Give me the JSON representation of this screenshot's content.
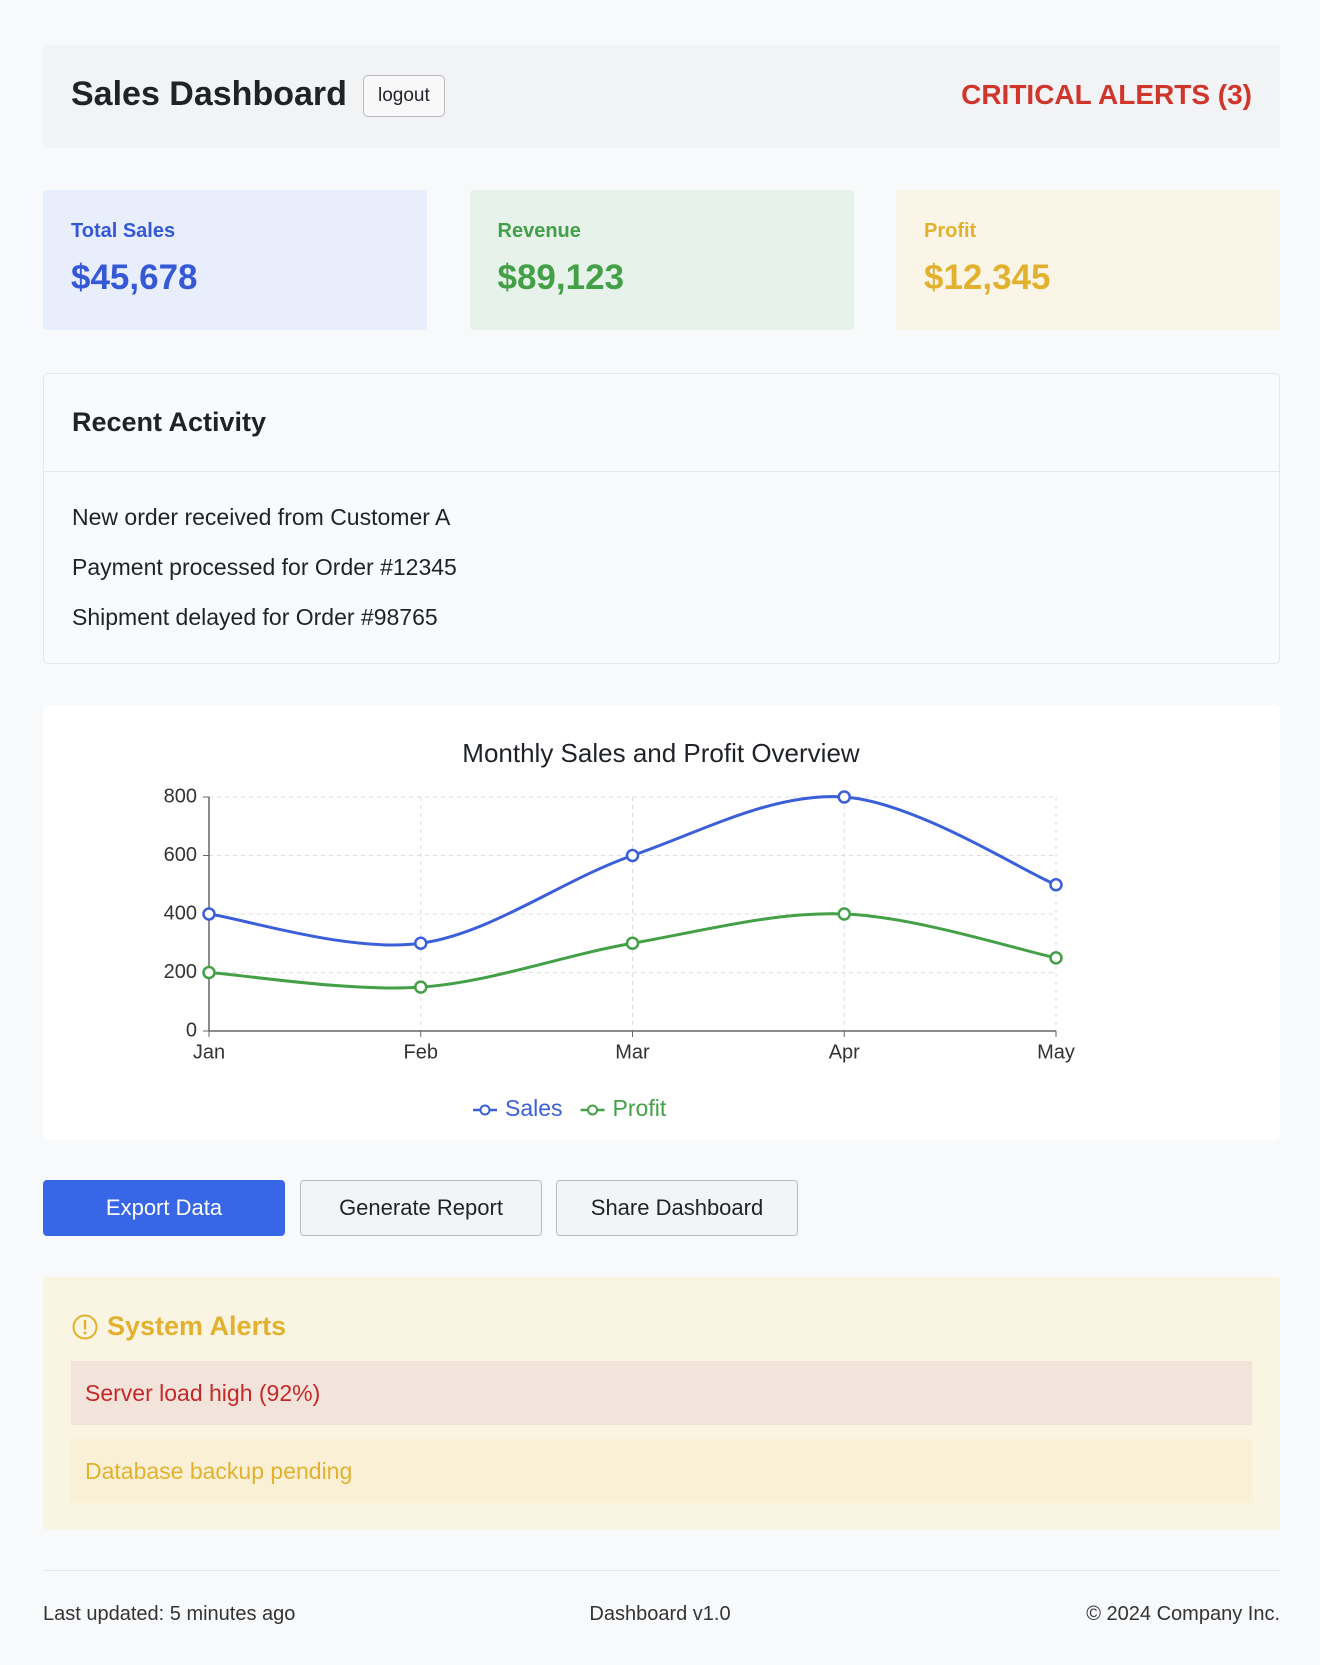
{
  "header": {
    "title": "Sales Dashboard",
    "logout": "logout",
    "critical_alerts": "CRITICAL ALERTS (3)"
  },
  "stats": [
    {
      "label": "Total Sales",
      "value": "$45,678",
      "color": "#3559d6",
      "background": "#e8eefb"
    },
    {
      "label": "Revenue",
      "value": "$89,123",
      "color": "#43a047",
      "background": "#e6f2ea"
    },
    {
      "label": "Profit",
      "value": "$12,345",
      "color": "#e2b22e",
      "background": "#faf5e6"
    }
  ],
  "activity": {
    "title": "Recent Activity",
    "items": [
      "New order received from Customer A",
      "Payment processed for Order #12345",
      "Shipment delayed for Order #98765"
    ]
  },
  "chart_data": {
    "type": "line",
    "title": "Monthly Sales and Profit Overview",
    "categories": [
      "Jan",
      "Feb",
      "Mar",
      "Apr",
      "May"
    ],
    "series": [
      {
        "name": "Sales",
        "color": "#3b5fd9",
        "values": [
          400,
          300,
          600,
          800,
          500
        ]
      },
      {
        "name": "Profit",
        "color": "#43a047",
        "values": [
          200,
          150,
          300,
          400,
          250
        ]
      }
    ],
    "ylim": [
      0,
      800
    ],
    "yticks": [
      0,
      200,
      400,
      600,
      800
    ],
    "grid": true,
    "legend": "bottom"
  },
  "actions": [
    "Export Data",
    "Generate Report",
    "Share Dashboard"
  ],
  "alerts": {
    "title": "System Alerts",
    "items": [
      "Server load high (92%)",
      "Database backup pending"
    ]
  },
  "footer": {
    "left": "Last updated: 5 minutes ago",
    "center": "Dashboard v1.0",
    "right": "© 2024 Company Inc."
  }
}
